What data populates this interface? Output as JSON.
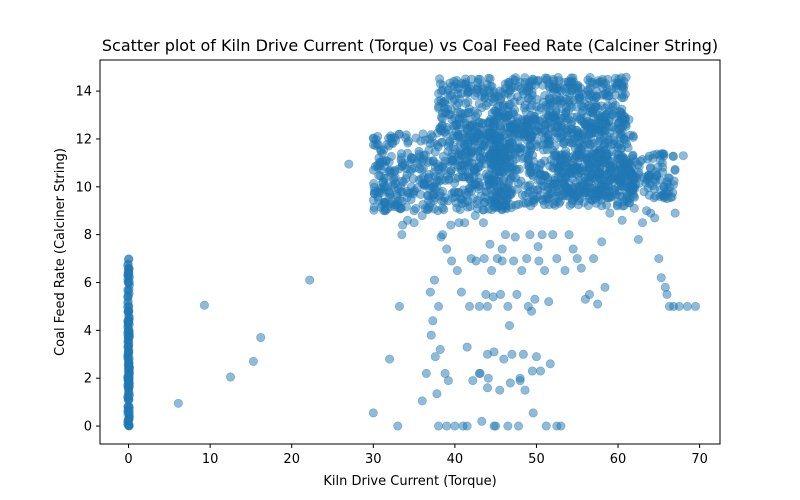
{
  "chart_data": {
    "type": "scatter",
    "title": "Scatter plot of Kiln Drive Current (Torque) vs Coal Feed Rate (Calciner String)",
    "xlabel": "Kiln Drive Current (Torque)",
    "ylabel": "Coal Feed Rate (Calciner String)",
    "xlim": [
      -3.5,
      72.5
    ],
    "ylim": [
      -0.75,
      15.3
    ],
    "xticks": [
      0,
      10,
      20,
      30,
      40,
      50,
      60,
      70
    ],
    "yticks": [
      0,
      2,
      4,
      6,
      8,
      10,
      12,
      14
    ],
    "grid": false,
    "legend": "none",
    "point_color": "#1f77b4",
    "point_alpha": 0.5,
    "dense_regions": [
      {
        "x": [
          30,
          47
        ],
        "y": [
          9.0,
          12.3
        ]
      },
      {
        "x": [
          38,
          61
        ],
        "y": [
          12.0,
          14.6
        ]
      },
      {
        "x": [
          44,
          62
        ],
        "y": [
          9.2,
          13.0
        ]
      },
      {
        "x": [
          52,
          67
        ],
        "y": [
          9.5,
          11.4
        ]
      }
    ],
    "zero_torque_column": {
      "x": 0,
      "y_min": 0,
      "y_max": 7.0
    },
    "points": [
      [
        27.0,
        10.95
      ],
      [
        22.2,
        6.1
      ],
      [
        16.2,
        3.7
      ],
      [
        15.3,
        2.7
      ],
      [
        12.5,
        2.05
      ],
      [
        9.3,
        5.05
      ],
      [
        6.1,
        0.95
      ],
      [
        30.0,
        0.55
      ],
      [
        32.0,
        2.8
      ],
      [
        33.0,
        0.0
      ],
      [
        33.2,
        5.0
      ],
      [
        33.5,
        8.0
      ],
      [
        33.6,
        8.4
      ],
      [
        34.2,
        8.6
      ],
      [
        35.0,
        8.5
      ],
      [
        36.0,
        1.05
      ],
      [
        36.5,
        2.2
      ],
      [
        37.0,
        5.6
      ],
      [
        37.1,
        3.8
      ],
      [
        37.3,
        4.4
      ],
      [
        37.5,
        6.1
      ],
      [
        37.6,
        2.9
      ],
      [
        37.8,
        1.35
      ],
      [
        38.0,
        5.0
      ],
      [
        38.2,
        3.2
      ],
      [
        38.0,
        0.0
      ],
      [
        38.3,
        7.9
      ],
      [
        38.5,
        8.0
      ],
      [
        38.8,
        2.2
      ],
      [
        39.0,
        7.4
      ],
      [
        39.2,
        1.9
      ],
      [
        39.5,
        8.4
      ],
      [
        39.6,
        6.9
      ],
      [
        40.0,
        0.0
      ],
      [
        40.3,
        6.5
      ],
      [
        40.5,
        8.5
      ],
      [
        40.8,
        5.6
      ],
      [
        41.0,
        0.0
      ],
      [
        41.2,
        8.5
      ],
      [
        41.5,
        3.3
      ],
      [
        41.8,
        5.0
      ],
      [
        42.0,
        7.0
      ],
      [
        42.2,
        1.9
      ],
      [
        42.5,
        8.8
      ],
      [
        42.6,
        6.9
      ],
      [
        43.0,
        5.0
      ],
      [
        43.1,
        2.2
      ],
      [
        43.3,
        0.2
      ],
      [
        43.5,
        8.5
      ],
      [
        43.6,
        7.0
      ],
      [
        43.8,
        5.5
      ],
      [
        44.0,
        3.0
      ],
      [
        44.1,
        2.0
      ],
      [
        44.3,
        7.6
      ],
      [
        44.5,
        6.5
      ],
      [
        44.7,
        5.4
      ],
      [
        44.8,
        3.1
      ],
      [
        45.0,
        0.0
      ],
      [
        45.2,
        7.0
      ],
      [
        45.5,
        1.5
      ],
      [
        45.6,
        5.5
      ],
      [
        45.8,
        7.4
      ],
      [
        46.0,
        2.8
      ],
      [
        46.2,
        8.0
      ],
      [
        46.5,
        5.0
      ],
      [
        46.7,
        4.2
      ],
      [
        46.8,
        1.8
      ],
      [
        47.0,
        3.0
      ],
      [
        47.2,
        6.9
      ],
      [
        47.4,
        7.9
      ],
      [
        47.6,
        5.5
      ],
      [
        47.8,
        0.0
      ],
      [
        48.0,
        2.0
      ],
      [
        48.2,
        6.5
      ],
      [
        48.4,
        3.0
      ],
      [
        48.6,
        1.5
      ],
      [
        48.8,
        7.0
      ],
      [
        49.0,
        5.0
      ],
      [
        49.2,
        8.0
      ],
      [
        49.4,
        4.8
      ],
      [
        49.6,
        0.55
      ],
      [
        49.8,
        5.3
      ],
      [
        50.0,
        2.9
      ],
      [
        50.2,
        7.5
      ],
      [
        50.3,
        6.9
      ],
      [
        50.5,
        2.3
      ],
      [
        50.7,
        8.0
      ],
      [
        51.0,
        6.5
      ],
      [
        51.2,
        0.0
      ],
      [
        51.5,
        5.2
      ],
      [
        51.7,
        2.6
      ],
      [
        52.0,
        8.0
      ],
      [
        52.5,
        7.0
      ],
      [
        53.0,
        0.0
      ],
      [
        53.5,
        6.5
      ],
      [
        54.0,
        8.0
      ],
      [
        54.5,
        7.4
      ],
      [
        55.0,
        7.0
      ],
      [
        55.5,
        6.6
      ],
      [
        56.0,
        5.3
      ],
      [
        56.5,
        5.5
      ],
      [
        57.0,
        7.0
      ],
      [
        57.5,
        5.1
      ],
      [
        58.0,
        7.7
      ],
      [
        58.4,
        5.8
      ],
      [
        59.0,
        8.9
      ],
      [
        60.5,
        8.6
      ],
      [
        62.0,
        9.1
      ],
      [
        62.5,
        7.8
      ],
      [
        63.0,
        8.5
      ],
      [
        63.5,
        9.0
      ],
      [
        64.0,
        8.9
      ],
      [
        64.5,
        8.7
      ],
      [
        65.0,
        7.0
      ],
      [
        65.3,
        6.2
      ],
      [
        65.8,
        5.8
      ],
      [
        66.0,
        5.5
      ],
      [
        66.3,
        5.0
      ],
      [
        66.8,
        5.0
      ],
      [
        67.0,
        8.9
      ],
      [
        67.5,
        5.0
      ],
      [
        68.0,
        11.3
      ],
      [
        68.5,
        5.0
      ],
      [
        69.5,
        5.0
      ],
      [
        43.0,
        2.2
      ],
      [
        44.0,
        1.6
      ],
      [
        46.5,
        0.0
      ],
      [
        49.5,
        2.3
      ],
      [
        41.5,
        0.0
      ],
      [
        44.8,
        0.0
      ],
      [
        52.5,
        0.0
      ],
      [
        39.0,
        0.0
      ],
      [
        44.0,
        5.0
      ],
      [
        45.8,
        6.9
      ],
      [
        48.0,
        1.9
      ],
      [
        36.0,
        8.8
      ],
      [
        35.0,
        9.0
      ],
      [
        31.5,
        9.0
      ],
      [
        30.5,
        9.8
      ],
      [
        30.8,
        11.0
      ]
    ]
  }
}
